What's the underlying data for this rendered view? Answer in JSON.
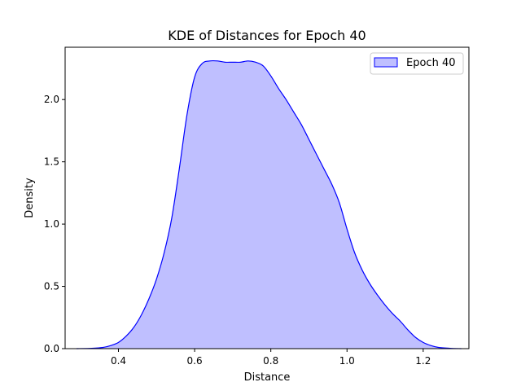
{
  "chart_data": {
    "type": "area",
    "title": "KDE of Distances for Epoch 40",
    "xlabel": "Distance",
    "ylabel": "Density",
    "xlim": [
      0.26,
      1.32
    ],
    "ylim": [
      0,
      2.42
    ],
    "xticks": [
      0.4,
      0.6,
      0.8,
      1.0,
      1.2
    ],
    "xtick_labels": [
      "0.4",
      "0.6",
      "0.8",
      "1.0",
      "1.2"
    ],
    "yticks": [
      0.0,
      0.5,
      1.0,
      1.5,
      2.0
    ],
    "ytick_labels": [
      "0.0",
      "0.5",
      "1.0",
      "1.5",
      "2.0"
    ],
    "grid": false,
    "legend": {
      "position": "top-right",
      "entries": [
        "Epoch 40"
      ]
    },
    "series": [
      {
        "name": "Epoch 40",
        "line_color": "#0000ff",
        "fill_color": "#bfbfff",
        "x": [
          0.29,
          0.33,
          0.36,
          0.38,
          0.4,
          0.42,
          0.44,
          0.46,
          0.48,
          0.5,
          0.52,
          0.54,
          0.56,
          0.58,
          0.6,
          0.62,
          0.64,
          0.66,
          0.68,
          0.7,
          0.72,
          0.74,
          0.76,
          0.78,
          0.8,
          0.82,
          0.84,
          0.86,
          0.88,
          0.9,
          0.92,
          0.94,
          0.96,
          0.98,
          1.0,
          1.02,
          1.04,
          1.06,
          1.08,
          1.1,
          1.12,
          1.14,
          1.16,
          1.18,
          1.2,
          1.22,
          1.24,
          1.27,
          1.3
        ],
        "y": [
          0.0,
          0.003,
          0.01,
          0.025,
          0.05,
          0.1,
          0.17,
          0.27,
          0.4,
          0.56,
          0.77,
          1.05,
          1.45,
          1.88,
          2.18,
          2.29,
          2.31,
          2.31,
          2.3,
          2.3,
          2.3,
          2.31,
          2.3,
          2.27,
          2.19,
          2.09,
          2.0,
          1.9,
          1.8,
          1.68,
          1.56,
          1.44,
          1.32,
          1.17,
          0.96,
          0.77,
          0.63,
          0.52,
          0.43,
          0.35,
          0.28,
          0.22,
          0.15,
          0.09,
          0.05,
          0.025,
          0.01,
          0.003,
          0.0
        ]
      }
    ]
  }
}
